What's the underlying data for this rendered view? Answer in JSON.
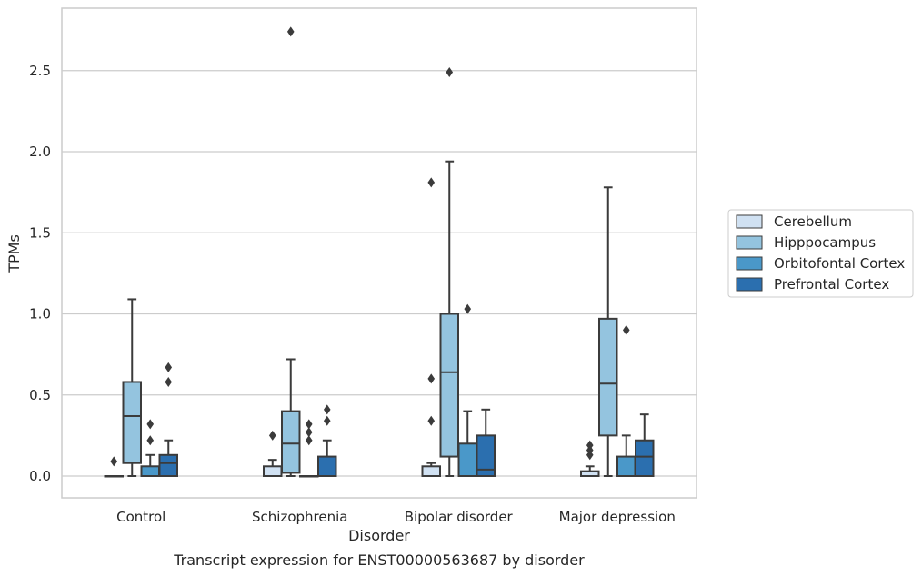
{
  "chart_data": {
    "type": "box",
    "caption": "Transcript expression for ENST00000563687 by disorder",
    "xlabel": "Disorder",
    "ylabel": "TPMs",
    "categories": [
      "Control",
      "Schizophrenia",
      "Bipolar disorder",
      "Major depression"
    ],
    "ylim": [
      -0.13,
      2.88
    ],
    "yticks": [
      0.0,
      0.5,
      1.0,
      1.5,
      2.0,
      2.5
    ],
    "ytick_labels": [
      "0.0",
      "0.5",
      "1.0",
      "1.5",
      "2.0",
      "2.5"
    ],
    "grid": "horizontal",
    "legend_position": "right",
    "series": [
      {
        "name": "Cerebellum",
        "color": "#d0e1f2",
        "boxes": [
          {
            "whislo": 0.0,
            "q1": 0.0,
            "med": 0.0,
            "q3": 0.0,
            "whishi": 0.0,
            "fliers": [
              0.09
            ]
          },
          {
            "whislo": 0.0,
            "q1": 0.0,
            "med": 0.0,
            "q3": 0.06,
            "whishi": 0.1,
            "fliers": [
              0.25
            ]
          },
          {
            "whislo": 0.0,
            "q1": 0.0,
            "med": 0.0,
            "q3": 0.06,
            "whishi": 0.08,
            "fliers": [
              0.34,
              0.6,
              1.81
            ]
          },
          {
            "whislo": 0.0,
            "q1": 0.0,
            "med": 0.0,
            "q3": 0.03,
            "whishi": 0.06,
            "fliers": [
              0.13,
              0.16,
              0.19
            ]
          }
        ]
      },
      {
        "name": "Hipppocampus",
        "color": "#94c4df",
        "boxes": [
          {
            "whislo": 0.0,
            "q1": 0.08,
            "med": 0.37,
            "q3": 0.58,
            "whishi": 1.09,
            "fliers": []
          },
          {
            "whislo": 0.0,
            "q1": 0.02,
            "med": 0.2,
            "q3": 0.4,
            "whishi": 0.72,
            "fliers": [
              2.74
            ]
          },
          {
            "whislo": 0.0,
            "q1": 0.12,
            "med": 0.64,
            "q3": 1.0,
            "whishi": 1.94,
            "fliers": [
              2.49
            ]
          },
          {
            "whislo": 0.0,
            "q1": 0.25,
            "med": 0.57,
            "q3": 0.97,
            "whishi": 1.78,
            "fliers": []
          }
        ]
      },
      {
        "name": "Orbitofontal Cortex",
        "color": "#4a98c9",
        "boxes": [
          {
            "whislo": 0.0,
            "q1": 0.0,
            "med": 0.0,
            "q3": 0.06,
            "whishi": 0.13,
            "fliers": [
              0.22,
              0.32
            ]
          },
          {
            "whislo": 0.0,
            "q1": 0.0,
            "med": 0.0,
            "q3": 0.0,
            "whishi": 0.0,
            "fliers": [
              0.22,
              0.27,
              0.32
            ]
          },
          {
            "whislo": 0.0,
            "q1": 0.0,
            "med": 0.0,
            "q3": 0.2,
            "whishi": 0.4,
            "fliers": [
              1.03
            ]
          },
          {
            "whislo": 0.0,
            "q1": 0.0,
            "med": 0.0,
            "q3": 0.12,
            "whishi": 0.25,
            "fliers": [
              0.9
            ]
          }
        ]
      },
      {
        "name": "Prefrontal Cortex",
        "color": "#2b6faf",
        "boxes": [
          {
            "whislo": 0.0,
            "q1": 0.0,
            "med": 0.08,
            "q3": 0.13,
            "whishi": 0.22,
            "fliers": [
              0.58,
              0.67
            ]
          },
          {
            "whislo": 0.0,
            "q1": 0.0,
            "med": 0.0,
            "q3": 0.12,
            "whishi": 0.22,
            "fliers": [
              0.34,
              0.41
            ]
          },
          {
            "whislo": 0.0,
            "q1": 0.0,
            "med": 0.04,
            "q3": 0.25,
            "whishi": 0.41,
            "fliers": []
          },
          {
            "whislo": 0.0,
            "q1": 0.0,
            "med": 0.12,
            "q3": 0.22,
            "whishi": 0.38,
            "fliers": []
          }
        ]
      }
    ]
  }
}
